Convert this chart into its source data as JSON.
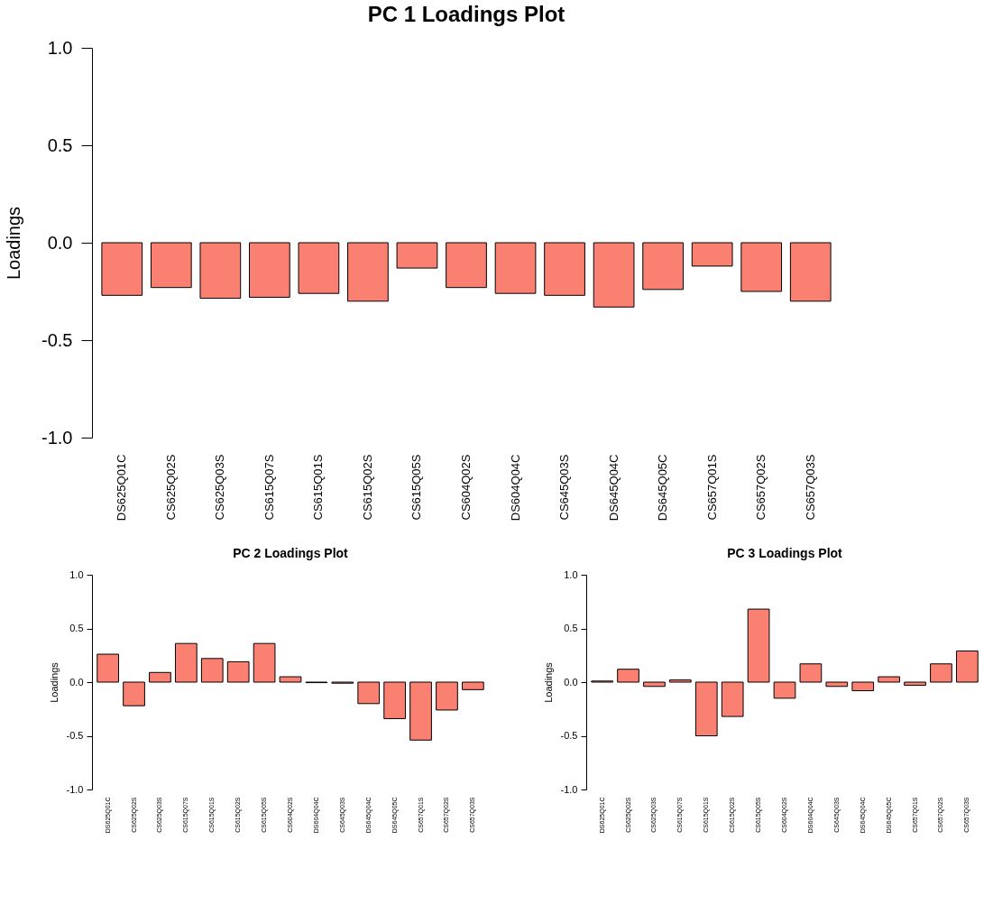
{
  "chart_data": [
    {
      "type": "bar",
      "title": "PC 1 Loadings Plot",
      "ylabel": "Loadings",
      "color": "#fa8072",
      "categories": [
        "DS625Q01C",
        "CS625Q02S",
        "CS625Q03S",
        "CS615Q07S",
        "CS615Q01S",
        "CS615Q02S",
        "CS615Q05S",
        "CS604Q02S",
        "DS604Q04C",
        "CS645Q03S",
        "DS645Q04C",
        "DS645Q05C",
        "CS657Q01S",
        "CS657Q02S",
        "CS657Q03S"
      ],
      "values": [
        -0.27,
        -0.23,
        -0.285,
        -0.28,
        -0.26,
        -0.3,
        -0.13,
        -0.23,
        -0.26,
        -0.27,
        -0.33,
        -0.24,
        -0.12,
        -0.25,
        -0.3
      ],
      "ylim": [
        -1,
        1
      ],
      "yticks": [
        {
          "value": -1,
          "label": "-1.0"
        },
        {
          "value": -0.5,
          "label": "-0.5"
        },
        {
          "value": 0,
          "label": "0.0"
        },
        {
          "value": 0.5,
          "label": "0.5"
        },
        {
          "value": 1,
          "label": "1.0"
        }
      ]
    },
    {
      "type": "bar",
      "title": "PC 2 Loadings Plot",
      "ylabel": "Loadings",
      "color": "#fa8072",
      "categories": [
        "DS625Q01C",
        "CS625Q02S",
        "CS625Q03S",
        "CS615Q07S",
        "CS615Q01S",
        "CS615Q02S",
        "CS615Q05S",
        "CS604Q02S",
        "DS604Q04C",
        "CS645Q03S",
        "DS645Q04C",
        "DS645Q05C",
        "CS657Q01S",
        "CS657Q02S",
        "CS657Q03S"
      ],
      "values": [
        0.26,
        -0.22,
        0.09,
        0.36,
        0.22,
        0.19,
        0.36,
        0.05,
        -0.005,
        -0.01,
        -0.2,
        -0.34,
        -0.54,
        -0.26,
        -0.07
      ],
      "ylim": [
        -1,
        1
      ],
      "yticks": [
        {
          "value": -1,
          "label": "-1.0"
        },
        {
          "value": -0.5,
          "label": "-0.5"
        },
        {
          "value": 0,
          "label": "0.0"
        },
        {
          "value": 0.5,
          "label": "0.5"
        },
        {
          "value": 1,
          "label": "1.0"
        }
      ]
    },
    {
      "type": "bar",
      "title": "PC 3 Loadings Plot",
      "ylabel": "Loadings",
      "color": "#fa8072",
      "categories": [
        "DS625Q01C",
        "CS625Q02S",
        "CS625Q03S",
        "CS615Q07S",
        "CS615Q01S",
        "CS615Q02S",
        "CS615Q05S",
        "CS604Q02S",
        "DS604Q04C",
        "CS645Q03S",
        "DS645Q04C",
        "DS645Q05C",
        "CS657Q01S",
        "CS657Q02S",
        "CS657Q03S"
      ],
      "values": [
        0.01,
        0.12,
        -0.04,
        0.02,
        -0.5,
        -0.32,
        0.68,
        -0.15,
        0.17,
        -0.04,
        -0.08,
        0.05,
        -0.03,
        0.17,
        0.29
      ],
      "ylim": [
        -1,
        1
      ],
      "yticks": [
        {
          "value": -1,
          "label": "-1.0"
        },
        {
          "value": -0.5,
          "label": "-0.5"
        },
        {
          "value": 0,
          "label": "0.0"
        },
        {
          "value": 0.5,
          "label": "0.5"
        },
        {
          "value": 1,
          "label": "1.0"
        }
      ]
    }
  ]
}
